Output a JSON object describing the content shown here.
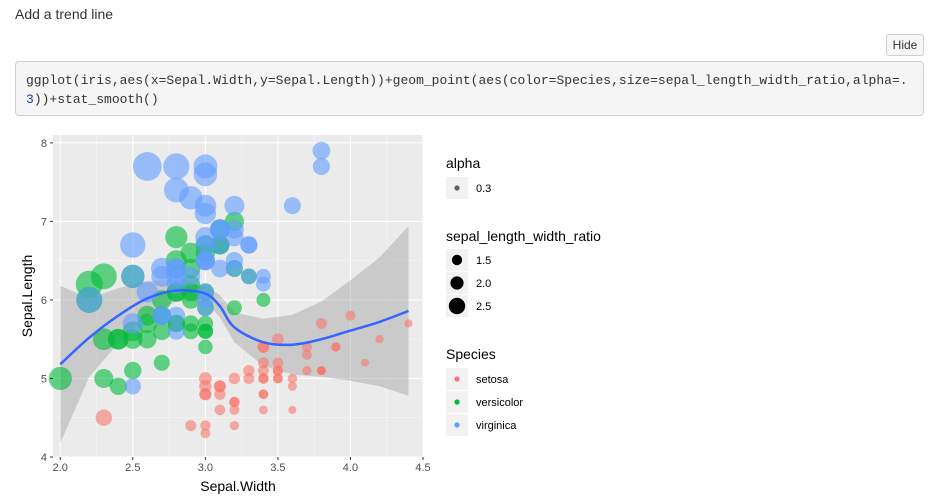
{
  "page": {
    "heading": "Add a trend line",
    "hide_button": "Hide",
    "code": {
      "part1": "ggplot(iris,aes(x=Sepal.Width,y=Sepal.Length))+geom_point(aes(color=Species,size=sepal_length_width_ratio,alpha",
      "part2": "=",
      "number": ".3",
      "part3": "))+stat_smooth()"
    }
  },
  "chart_data": {
    "type": "scatter",
    "xlabel": "Sepal.Width",
    "ylabel": "Sepal.Length",
    "xlim": [
      1.95,
      4.5
    ],
    "ylim": [
      4.0,
      8.1
    ],
    "xticks": [
      2.0,
      2.5,
      3.0,
      3.5,
      4.0,
      4.5
    ],
    "xtick_labels": [
      "2.0",
      "2.5",
      "3.0",
      "3.5",
      "4.0",
      "4.5"
    ],
    "yticks": [
      4,
      5,
      6,
      7,
      8
    ],
    "ytick_labels": [
      "4",
      "5",
      "6",
      "7",
      "8"
    ],
    "grid": true,
    "background": "#ebebeb",
    "colors": {
      "setosa": "#f8766d",
      "versicolor": "#00ba38",
      "virginica": "#619cff",
      "smooth": "#3366ff",
      "ribbon": "#999999"
    },
    "point_alpha": 0.3,
    "series": [
      {
        "name": "setosa",
        "points": [
          [
            3.5,
            5.1
          ],
          [
            3.0,
            4.9
          ],
          [
            3.2,
            4.7
          ],
          [
            3.1,
            4.6
          ],
          [
            3.6,
            5.0
          ],
          [
            3.9,
            5.4
          ],
          [
            3.4,
            4.6
          ],
          [
            3.4,
            5.0
          ],
          [
            2.9,
            4.4
          ],
          [
            3.1,
            4.9
          ],
          [
            3.7,
            5.4
          ],
          [
            3.4,
            4.8
          ],
          [
            3.0,
            4.8
          ],
          [
            3.0,
            4.3
          ],
          [
            4.0,
            5.8
          ],
          [
            4.4,
            5.7
          ],
          [
            3.9,
            5.4
          ],
          [
            3.5,
            5.1
          ],
          [
            3.8,
            5.7
          ],
          [
            3.8,
            5.1
          ],
          [
            3.4,
            5.4
          ],
          [
            3.7,
            5.1
          ],
          [
            3.6,
            4.6
          ],
          [
            3.3,
            5.1
          ],
          [
            3.4,
            4.8
          ],
          [
            3.0,
            5.0
          ],
          [
            3.4,
            5.0
          ],
          [
            3.5,
            5.2
          ],
          [
            3.4,
            5.2
          ],
          [
            3.2,
            4.7
          ],
          [
            3.1,
            4.8
          ],
          [
            3.4,
            5.4
          ],
          [
            4.1,
            5.2
          ],
          [
            4.2,
            5.5
          ],
          [
            3.1,
            4.9
          ],
          [
            3.2,
            5.0
          ],
          [
            3.5,
            5.5
          ],
          [
            3.6,
            4.9
          ],
          [
            3.0,
            4.4
          ],
          [
            3.4,
            5.1
          ],
          [
            3.5,
            5.0
          ],
          [
            2.3,
            4.5
          ],
          [
            3.2,
            4.4
          ],
          [
            3.5,
            5.0
          ],
          [
            3.8,
            5.1
          ],
          [
            3.0,
            4.8
          ],
          [
            3.8,
            5.1
          ],
          [
            3.2,
            4.6
          ],
          [
            3.7,
            5.3
          ],
          [
            3.3,
            5.0
          ]
        ]
      },
      {
        "name": "versicolor",
        "points": [
          [
            3.2,
            7.0
          ],
          [
            3.2,
            6.4
          ],
          [
            3.1,
            6.9
          ],
          [
            2.3,
            5.5
          ],
          [
            2.8,
            6.5
          ],
          [
            2.8,
            5.7
          ],
          [
            3.3,
            6.3
          ],
          [
            2.4,
            4.9
          ],
          [
            2.9,
            6.6
          ],
          [
            2.7,
            5.2
          ],
          [
            2.0,
            5.0
          ],
          [
            3.0,
            5.9
          ],
          [
            2.2,
            6.0
          ],
          [
            2.9,
            6.1
          ],
          [
            2.9,
            5.6
          ],
          [
            3.1,
            6.7
          ],
          [
            3.0,
            5.6
          ],
          [
            2.7,
            5.8
          ],
          [
            2.2,
            6.2
          ],
          [
            2.5,
            5.6
          ],
          [
            3.2,
            5.9
          ],
          [
            2.8,
            6.1
          ],
          [
            2.5,
            6.3
          ],
          [
            2.8,
            6.1
          ],
          [
            2.9,
            6.4
          ],
          [
            3.0,
            6.6
          ],
          [
            2.8,
            6.8
          ],
          [
            3.0,
            6.7
          ],
          [
            2.9,
            6.0
          ],
          [
            2.6,
            5.7
          ],
          [
            2.4,
            5.5
          ],
          [
            2.4,
            5.5
          ],
          [
            2.7,
            5.8
          ],
          [
            2.7,
            6.0
          ],
          [
            3.0,
            5.4
          ],
          [
            3.4,
            6.0
          ],
          [
            3.1,
            6.7
          ],
          [
            2.3,
            6.3
          ],
          [
            3.0,
            5.6
          ],
          [
            2.5,
            5.5
          ],
          [
            2.6,
            5.5
          ],
          [
            3.0,
            6.1
          ],
          [
            2.6,
            5.8
          ],
          [
            2.3,
            5.0
          ],
          [
            2.7,
            5.6
          ],
          [
            3.0,
            5.7
          ],
          [
            2.9,
            5.7
          ],
          [
            2.9,
            6.2
          ],
          [
            2.5,
            5.1
          ],
          [
            2.8,
            5.7
          ]
        ]
      },
      {
        "name": "virginica",
        "points": [
          [
            3.3,
            6.3
          ],
          [
            2.7,
            5.8
          ],
          [
            3.0,
            7.1
          ],
          [
            2.9,
            6.3
          ],
          [
            3.0,
            6.5
          ],
          [
            3.0,
            7.6
          ],
          [
            2.5,
            4.9
          ],
          [
            2.9,
            7.3
          ],
          [
            2.5,
            6.7
          ],
          [
            3.6,
            7.2
          ],
          [
            3.2,
            6.5
          ],
          [
            2.7,
            6.4
          ],
          [
            3.0,
            6.8
          ],
          [
            2.5,
            5.7
          ],
          [
            2.8,
            5.8
          ],
          [
            3.2,
            6.4
          ],
          [
            3.0,
            6.5
          ],
          [
            3.8,
            7.7
          ],
          [
            2.6,
            7.7
          ],
          [
            2.2,
            6.0
          ],
          [
            3.2,
            6.9
          ],
          [
            2.8,
            5.6
          ],
          [
            2.8,
            7.7
          ],
          [
            2.7,
            6.3
          ],
          [
            3.3,
            6.7
          ],
          [
            3.2,
            7.2
          ],
          [
            2.8,
            6.2
          ],
          [
            3.0,
            6.1
          ],
          [
            2.8,
            6.4
          ],
          [
            3.0,
            7.2
          ],
          [
            2.8,
            7.4
          ],
          [
            3.8,
            7.9
          ],
          [
            2.8,
            6.4
          ],
          [
            2.8,
            6.3
          ],
          [
            2.6,
            6.1
          ],
          [
            3.0,
            7.7
          ],
          [
            3.4,
            6.3
          ],
          [
            3.1,
            6.4
          ],
          [
            3.0,
            6.0
          ],
          [
            3.1,
            6.9
          ],
          [
            3.1,
            6.7
          ],
          [
            3.1,
            6.9
          ],
          [
            2.7,
            5.8
          ],
          [
            3.2,
            6.8
          ],
          [
            3.3,
            6.7
          ],
          [
            3.0,
            6.7
          ],
          [
            2.5,
            6.3
          ],
          [
            3.0,
            6.5
          ],
          [
            3.4,
            6.2
          ],
          [
            3.0,
            5.9
          ]
        ]
      }
    ],
    "smooth": {
      "x": [
        2.0,
        2.2,
        2.4,
        2.6,
        2.8,
        3.0,
        3.1,
        3.2,
        3.4,
        3.6,
        3.8,
        4.0,
        4.2,
        4.4
      ],
      "y": [
        5.18,
        5.52,
        5.8,
        6.02,
        6.12,
        6.08,
        5.92,
        5.65,
        5.46,
        5.43,
        5.5,
        5.61,
        5.72,
        5.86
      ],
      "ymin": [
        4.18,
        5.02,
        5.45,
        5.8,
        5.98,
        5.98,
        5.78,
        5.46,
        5.16,
        5.05,
        5.02,
        4.97,
        4.9,
        4.78
      ],
      "ymax": [
        6.18,
        6.02,
        6.15,
        6.24,
        6.26,
        6.18,
        6.06,
        5.84,
        5.76,
        5.81,
        5.98,
        6.25,
        6.54,
        6.94
      ]
    },
    "legends": {
      "alpha": {
        "title": "alpha",
        "entries": [
          "0.3"
        ]
      },
      "size": {
        "title": "sepal_length_width_ratio",
        "entries": [
          "1.5",
          "2.0",
          "2.5"
        ]
      },
      "color": {
        "title": "Species",
        "entries": [
          "setosa",
          "versicolor",
          "virginica"
        ]
      }
    }
  }
}
